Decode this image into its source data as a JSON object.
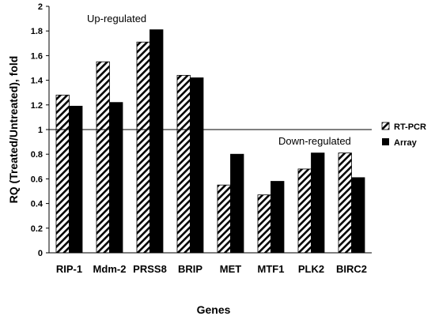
{
  "chart_data": {
    "type": "bar",
    "categories": [
      "RIP-1",
      "Mdm-2",
      "PRSS8",
      "BRIP",
      "MET",
      "MTF1",
      "PLK2",
      "BIRC2"
    ],
    "series": [
      {
        "name": "RT-PCR",
        "values": [
          1.28,
          1.55,
          1.71,
          1.44,
          0.55,
          0.47,
          0.68,
          0.81
        ],
        "fill": "hatched"
      },
      {
        "name": "Array",
        "values": [
          1.19,
          1.22,
          1.81,
          1.42,
          0.8,
          0.58,
          0.81,
          0.61
        ],
        "fill": "#000000"
      }
    ],
    "xlabel": "Genes",
    "ylabel": "RQ (Treated/Untreated), fold",
    "ylim": [
      0,
      2
    ],
    "yticks": [
      "0",
      "0.2",
      "0.4",
      "0.6",
      "0.8",
      "1",
      "1.2",
      "1.4",
      "1.6",
      "1.8",
      "2"
    ],
    "reference_line": 1,
    "annotations": [
      "Up-regulated",
      "Down-regulated"
    ],
    "legend_position": "right",
    "grid": false
  }
}
